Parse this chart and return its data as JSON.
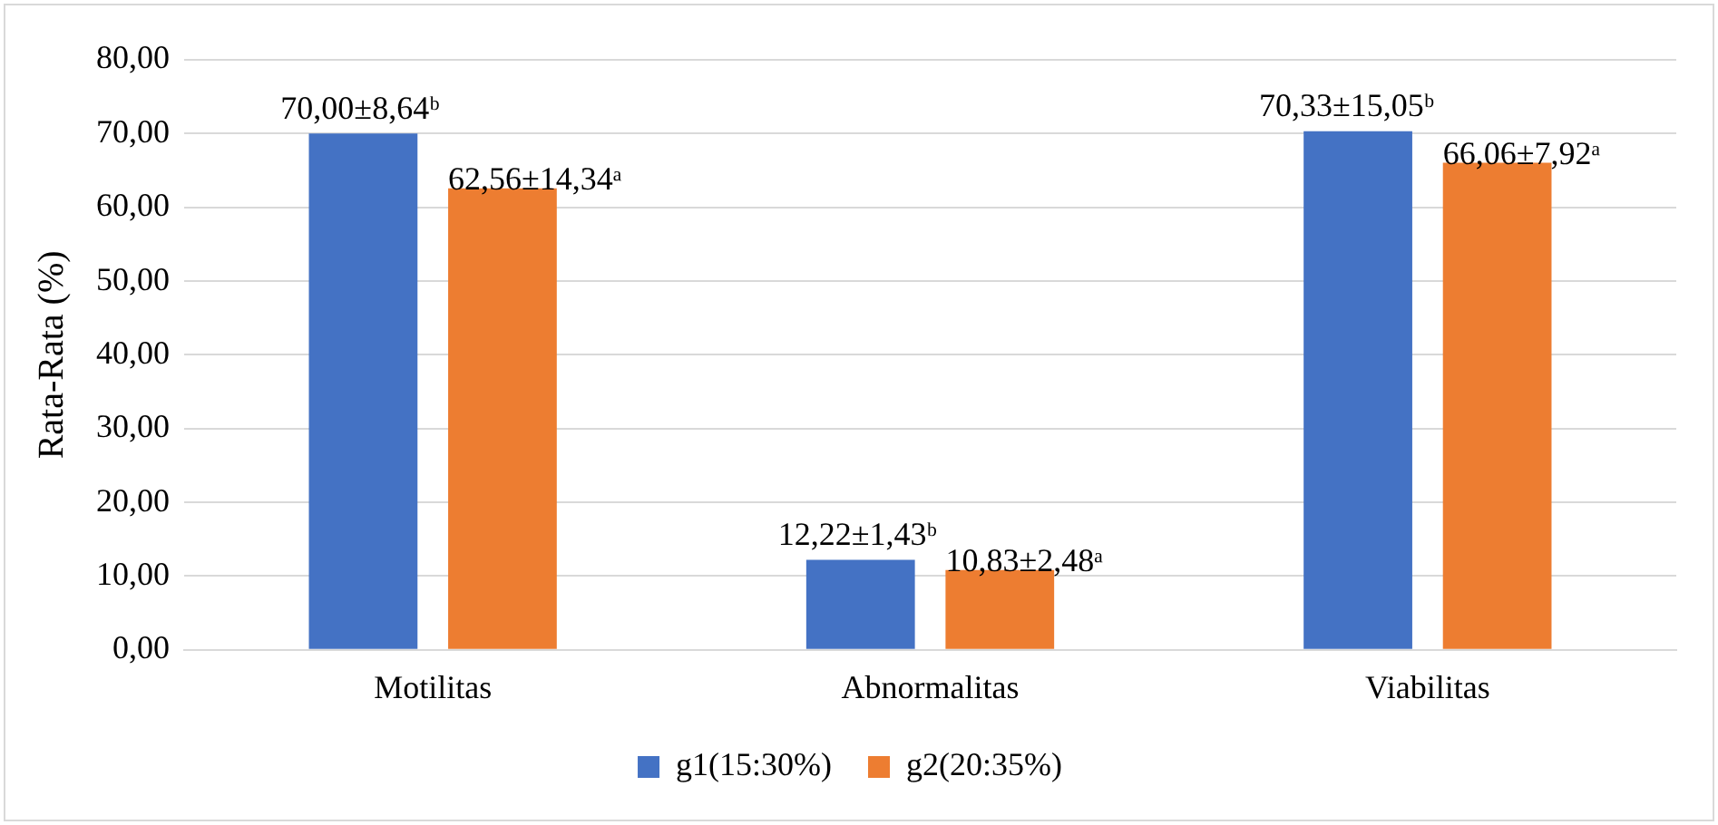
{
  "chart_data": {
    "type": "bar",
    "ylabel": "Rata-Rata (%)",
    "categories": [
      "Motilitas",
      "Abnormalitas",
      "Viabilitas"
    ],
    "series": [
      {
        "name": "g1(15:30%)",
        "color": "#4472c4",
        "values": [
          70.0,
          12.22,
          70.33
        ],
        "value_labels": [
          "70,00±8,64ᵇ",
          "12,22±1,43ᵇ",
          "70,33±15,05ᵇ"
        ]
      },
      {
        "name": "g2(20:35%)",
        "color": "#ed7d31",
        "values": [
          62.56,
          10.83,
          66.06
        ],
        "value_labels": [
          "62,56±14,34ᵃ",
          "10,83±2,48ᵃ",
          "66,06±7,92ᵃ"
        ]
      }
    ],
    "ylim": [
      0,
      80
    ],
    "yticks": [
      {
        "value": 0,
        "label": "0,00"
      },
      {
        "value": 10,
        "label": "10,00"
      },
      {
        "value": 20,
        "label": "20,00"
      },
      {
        "value": 30,
        "label": "30,00"
      },
      {
        "value": 40,
        "label": "40,00"
      },
      {
        "value": 50,
        "label": "50,00"
      },
      {
        "value": 60,
        "label": "60,00"
      },
      {
        "value": 70,
        "label": "70,00"
      },
      {
        "value": 80,
        "label": "80,00"
      }
    ],
    "grid": "y",
    "legend": "bottom"
  }
}
